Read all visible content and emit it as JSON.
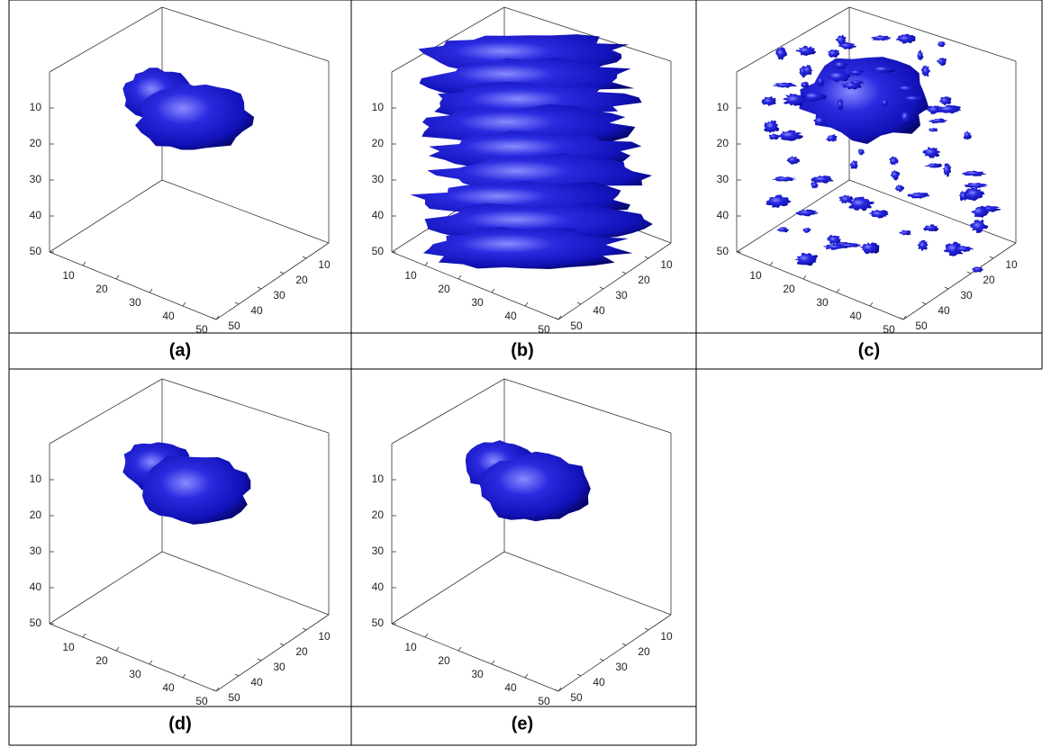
{
  "panels": [
    {
      "caption": "(a)",
      "z_ticks": [
        10,
        20,
        30,
        40,
        50
      ],
      "x_ticks": [
        10,
        20,
        30,
        40,
        50
      ],
      "y_ticks": [
        10,
        20,
        30,
        40,
        50
      ]
    },
    {
      "caption": "(b)",
      "z_ticks": [
        10,
        20,
        30,
        40,
        50
      ],
      "x_ticks": [
        10,
        20,
        30,
        40,
        50
      ],
      "y_ticks": [
        10,
        20,
        30,
        40,
        50
      ]
    },
    {
      "caption": "(c)",
      "z_ticks": [
        10,
        20,
        30,
        40,
        50
      ],
      "x_ticks": [
        10,
        20,
        30,
        40,
        50
      ],
      "y_ticks": [
        10,
        20,
        30,
        40,
        50
      ]
    },
    {
      "caption": "(d)",
      "z_ticks": [
        10,
        20,
        30,
        40,
        50
      ],
      "x_ticks": [
        10,
        20,
        30,
        40,
        50
      ],
      "y_ticks": [
        10,
        20,
        30,
        40,
        50
      ]
    },
    {
      "caption": "(e)",
      "z_ticks": [
        10,
        20,
        30,
        40,
        50
      ],
      "x_ticks": [
        10,
        20,
        30,
        40,
        50
      ],
      "y_ticks": [
        10,
        20,
        30,
        40,
        50
      ]
    }
  ]
}
